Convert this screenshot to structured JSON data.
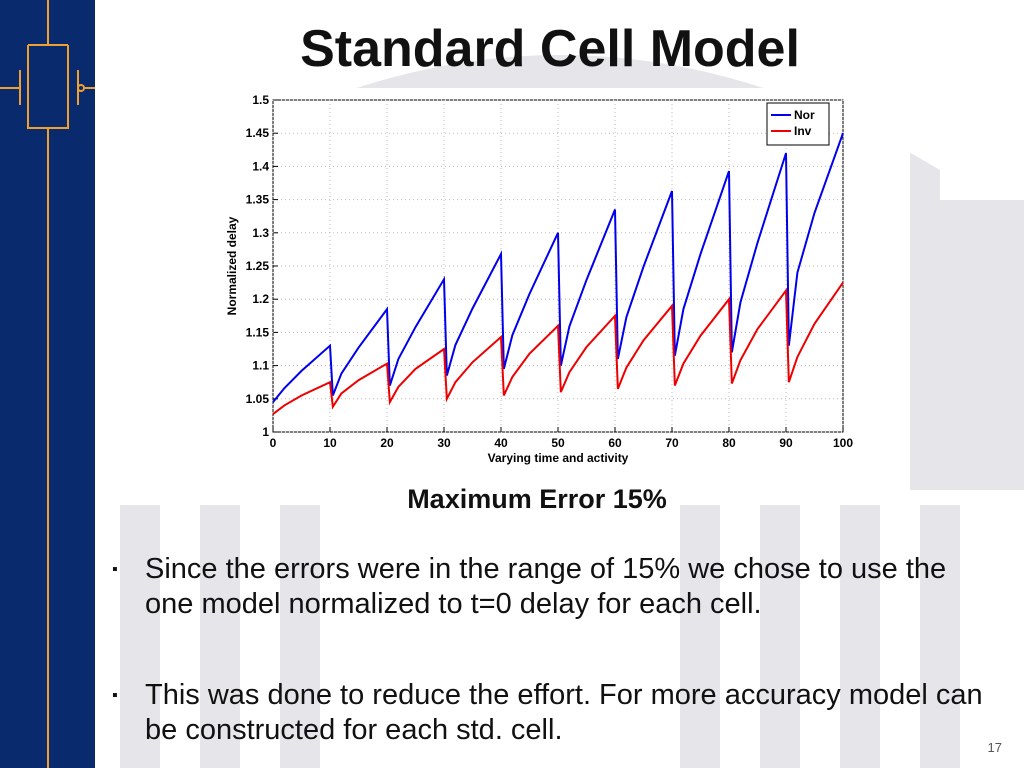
{
  "slide": {
    "title": "Standard Cell Model",
    "caption": "Maximum Error 15%",
    "bullets": [
      "Since the errors were in the range of 15% we chose to use the one model normalized to t=0 delay for each cell.",
      "This was done to reduce the effort. For more accuracy model can be constructed for each std. cell."
    ],
    "page_number": "17"
  },
  "chart_data": {
    "type": "line",
    "x_label": "Varying time and activity",
    "y_label": "Normalized delay",
    "x": [
      0,
      2,
      5,
      10,
      10.5,
      12,
      15,
      20,
      20.5,
      22,
      25,
      30,
      30.5,
      32,
      35,
      40,
      40.5,
      42,
      45,
      50,
      50.5,
      52,
      55,
      60,
      60.5,
      62,
      65,
      70,
      70.5,
      72,
      75,
      80,
      80.5,
      82,
      85,
      90,
      90.5,
      92,
      95,
      100
    ],
    "series": [
      {
        "name": "Nor",
        "color": "#0000ee",
        "values": [
          1.045,
          1.066,
          1.092,
          1.13,
          1.055,
          1.088,
          1.127,
          1.185,
          1.07,
          1.11,
          1.158,
          1.23,
          1.085,
          1.131,
          1.186,
          1.268,
          1.095,
          1.146,
          1.208,
          1.3,
          1.1,
          1.159,
          1.229,
          1.335,
          1.11,
          1.173,
          1.249,
          1.363,
          1.115,
          1.185,
          1.268,
          1.393,
          1.12,
          1.195,
          1.285,
          1.42,
          1.13,
          1.24,
          1.33,
          1.45
        ]
      },
      {
        "name": "Inv",
        "color": "#ee0000",
        "values": [
          1.027,
          1.04,
          1.055,
          1.075,
          1.038,
          1.058,
          1.078,
          1.103,
          1.045,
          1.068,
          1.095,
          1.125,
          1.05,
          1.075,
          1.105,
          1.143,
          1.055,
          1.083,
          1.118,
          1.16,
          1.06,
          1.09,
          1.128,
          1.175,
          1.065,
          1.097,
          1.138,
          1.19,
          1.07,
          1.103,
          1.145,
          1.2,
          1.073,
          1.108,
          1.155,
          1.213,
          1.075,
          1.113,
          1.163,
          1.225
        ]
      }
    ],
    "xlim": [
      0,
      100
    ],
    "xticks": [
      0,
      10,
      20,
      30,
      40,
      50,
      60,
      70,
      80,
      90,
      100
    ],
    "ylim": [
      1,
      1.5
    ],
    "yticks": [
      1,
      1.05,
      1.1,
      1.15,
      1.2,
      1.25,
      1.3,
      1.35,
      1.4,
      1.45,
      1.5
    ],
    "grid": true,
    "legend": "top-right"
  }
}
